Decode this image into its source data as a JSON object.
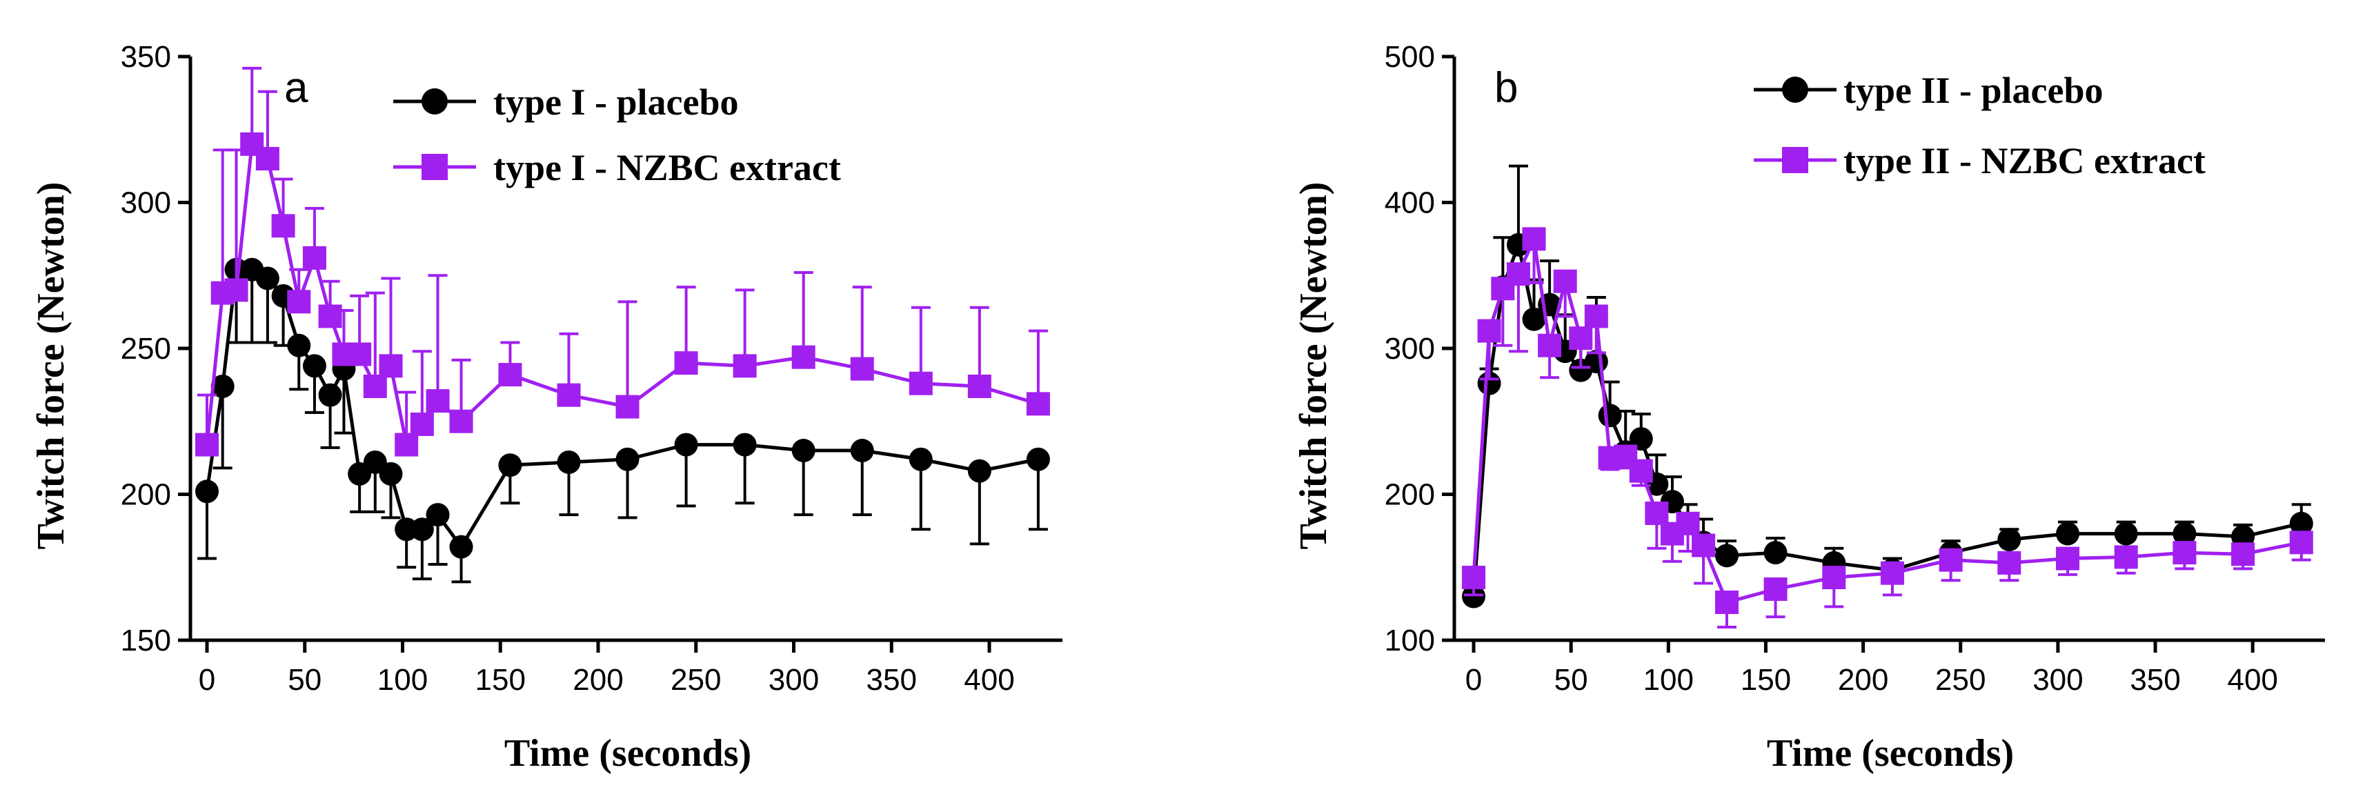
{
  "chart_data": [
    {
      "type": "line",
      "panel_label": "a",
      "xlabel": "Time (seconds)",
      "ylabel": "Twitch force (Newton)",
      "xlim": [
        -10,
        440
      ],
      "ylim": [
        150,
        350
      ],
      "x_ticks": [
        0,
        50,
        100,
        150,
        200,
        250,
        300,
        350,
        400
      ],
      "y_ticks": [
        150,
        200,
        250,
        300,
        350
      ],
      "legend_position": "top",
      "series": [
        {
          "name": "type I - placebo",
          "color": "#000000",
          "marker": "circle",
          "error_direction": "down",
          "x": [
            0,
            8,
            15,
            23,
            31,
            39,
            47,
            55,
            63,
            70,
            78,
            86,
            94,
            102,
            110,
            118,
            130,
            155,
            185,
            215,
            245,
            275,
            305,
            335,
            365,
            395,
            425
          ],
          "y": [
            201,
            237,
            277,
            277,
            274,
            268,
            251,
            244,
            234,
            243,
            207,
            211,
            207,
            188,
            188,
            193,
            182,
            210,
            211,
            212,
            217,
            217,
            215,
            215,
            212,
            208,
            212
          ],
          "err": [
            23,
            28,
            25,
            25,
            22,
            17,
            15,
            16,
            18,
            22,
            13,
            17,
            15,
            13,
            17,
            17,
            12,
            13,
            18,
            20,
            21,
            20,
            22,
            22,
            24,
            25,
            24
          ]
        },
        {
          "name": "type I - NZBC extract",
          "color": "#a020f0",
          "marker": "square",
          "error_direction": "up",
          "x": [
            0,
            8,
            15,
            23,
            31,
            39,
            47,
            55,
            63,
            70,
            78,
            86,
            94,
            102,
            110,
            118,
            130,
            155,
            185,
            215,
            245,
            275,
            305,
            335,
            365,
            395,
            425
          ],
          "y": [
            217,
            269,
            270,
            320,
            315,
            292,
            266,
            281,
            261,
            248,
            248,
            237,
            244,
            217,
            224,
            232,
            225,
            241,
            234,
            230,
            245,
            244,
            247,
            243,
            238,
            237,
            231
          ],
          "err": [
            17,
            49,
            48,
            26,
            23,
            16,
            11,
            17,
            12,
            15,
            20,
            32,
            30,
            18,
            25,
            43,
            21,
            11,
            21,
            36,
            26,
            26,
            29,
            28,
            26,
            27,
            25
          ]
        }
      ]
    },
    {
      "type": "line",
      "panel_label": "b",
      "xlabel": "Time (seconds)",
      "ylabel": "Twitch force (Newton)",
      "xlim": [
        -10,
        440
      ],
      "ylim": [
        100,
        500
      ],
      "x_ticks": [
        0,
        50,
        100,
        150,
        200,
        250,
        300,
        350,
        400
      ],
      "y_ticks": [
        100,
        200,
        300,
        400,
        500
      ],
      "legend_position": "top",
      "series": [
        {
          "name": "type II - placebo",
          "color": "#000000",
          "marker": "circle",
          "error_direction": "up",
          "x": [
            0,
            8,
            15,
            23,
            31,
            39,
            47,
            55,
            63,
            70,
            78,
            86,
            94,
            102,
            110,
            118,
            130,
            155,
            185,
            215,
            245,
            275,
            305,
            335,
            365,
            395,
            425
          ],
          "y": [
            130,
            276,
            342,
            371,
            320,
            330,
            298,
            285,
            291,
            254,
            229,
            238,
            207,
            195,
            180,
            167,
            158,
            160,
            153,
            148,
            160,
            169,
            173,
            173,
            173,
            171,
            180
          ],
          "err": [
            8,
            10,
            34,
            54,
            27,
            30,
            25,
            22,
            44,
            23,
            28,
            17,
            20,
            17,
            13,
            16,
            10,
            10,
            10,
            8,
            8,
            7,
            8,
            8,
            8,
            8,
            13
          ]
        },
        {
          "name": "type II - NZBC extract",
          "color": "#a020f0",
          "marker": "square",
          "error_direction": "down",
          "x": [
            0,
            8,
            15,
            23,
            31,
            39,
            47,
            55,
            63,
            70,
            78,
            86,
            94,
            102,
            110,
            118,
            130,
            155,
            185,
            215,
            245,
            275,
            305,
            335,
            365,
            395,
            425
          ],
          "y": [
            143,
            312,
            341,
            351,
            375,
            302,
            346,
            307,
            322,
            225,
            226,
            216,
            187,
            173,
            180,
            165,
            126,
            135,
            143,
            146,
            155,
            153,
            156,
            157,
            160,
            159,
            167
          ],
          "err": [
            12,
            33,
            39,
            53,
            30,
            22,
            24,
            20,
            25,
            8,
            8,
            10,
            24,
            19,
            19,
            26,
            17,
            19,
            20,
            15,
            14,
            12,
            11,
            11,
            11,
            10,
            12
          ]
        }
      ]
    }
  ]
}
